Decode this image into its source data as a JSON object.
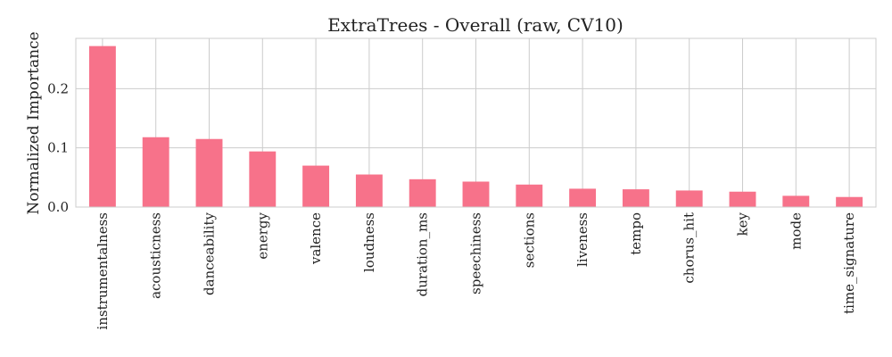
{
  "chart_data": {
    "type": "bar",
    "title": "ExtraTrees - Overall (raw, CV10)",
    "xlabel": "",
    "ylabel": "Normalized Importance",
    "categories": [
      "instrumentalness",
      "acousticness",
      "danceability",
      "energy",
      "valence",
      "loudness",
      "duration_ms",
      "speechiness",
      "sections",
      "liveness",
      "tempo",
      "chorus_hit",
      "key",
      "mode",
      "time_signature"
    ],
    "values": [
      0.272,
      0.118,
      0.115,
      0.094,
      0.07,
      0.055,
      0.047,
      0.043,
      0.038,
      0.031,
      0.03,
      0.028,
      0.026,
      0.019,
      0.017
    ],
    "ylim": [
      0,
      0.285
    ],
    "yticks": [
      0.0,
      0.1,
      0.2
    ],
    "ytick_labels": [
      "0.0",
      "0.1",
      "0.2"
    ],
    "grid": true,
    "bar_color": "#f7728a"
  }
}
